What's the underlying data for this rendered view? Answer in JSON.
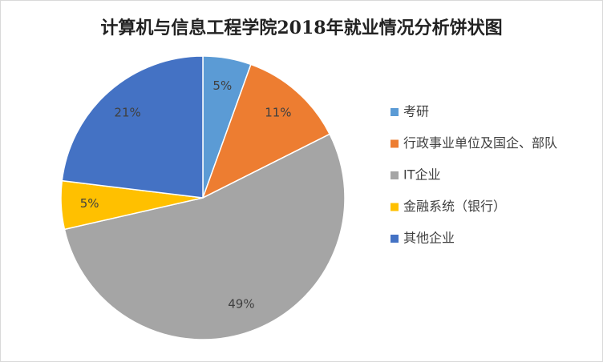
{
  "chart_data": {
    "type": "pie",
    "title": "计算机与信息工程学院2018年就业情况分析饼状图",
    "categories": [
      "考研",
      "行政事业单位及国企、部队",
      "IT企业",
      "金融系统（银行）",
      "其他企业"
    ],
    "values": [
      5,
      11,
      49,
      5,
      21
    ],
    "value_labels": [
      "5%",
      "11%",
      "49%",
      "5%",
      "21%"
    ],
    "colors": [
      "#5b9bd5",
      "#ed7d31",
      "#a5a5a5",
      "#ffc000",
      "#4472c4"
    ],
    "legend": "right"
  }
}
